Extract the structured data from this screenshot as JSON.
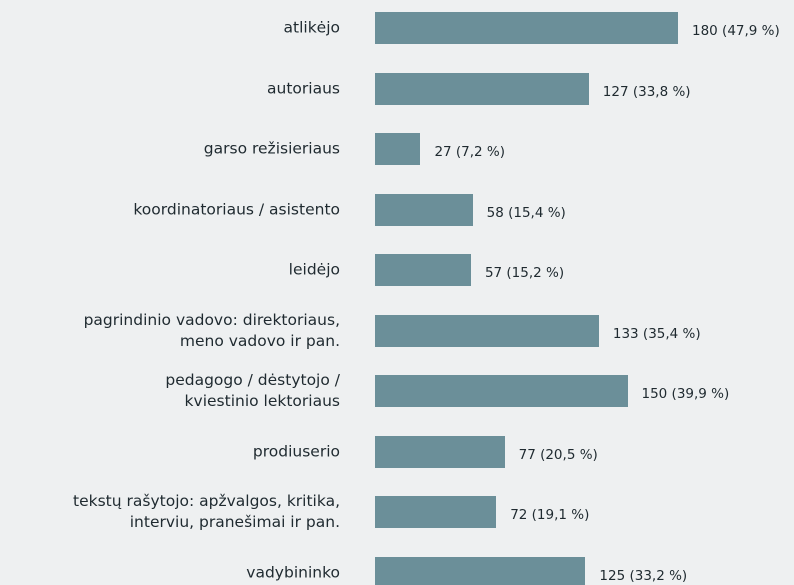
{
  "chart_data": {
    "type": "bar",
    "orientation": "horizontal",
    "color": "#6b8f99",
    "categories": [
      "atlikėjo",
      "autoriaus",
      "garso režisieriaus",
      "koordinatoriaus / asistento",
      "leidėjo",
      "pagrindinio vadovo: direktoriaus,\nmeno vadovo ir pan.",
      "pedagogo / dėstytojo /\nkviestinio lektoriaus",
      "prodiuserio",
      "tekstų rašytojo: apžvalgos, kritika,\ninterviu, pranešimai ir pan.",
      "vadybininko"
    ],
    "values": [
      180,
      127,
      27,
      58,
      57,
      133,
      150,
      77,
      72,
      125
    ],
    "value_labels": [
      "180 (47,9 %)",
      "127 (33,8 %)",
      "27 (7,2 %)",
      "58 (15,4 %)",
      "57 (15,2 %)",
      "133 (35,4 %)",
      "150 (39,9 %)",
      "77 (20,5 %)",
      "72 (19,1 %)",
      "125 (33,2 %)"
    ]
  }
}
